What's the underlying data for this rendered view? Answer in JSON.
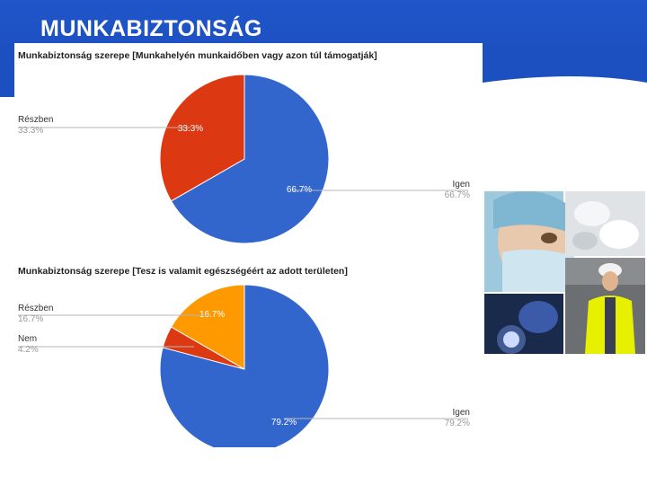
{
  "page": {
    "title": "MUNKABIZTONSÁG"
  },
  "chart_data": [
    {
      "type": "pie",
      "title": "Munkabiztonság szerepe [Munkahelyén munkaidőben vagy azon túl támogatják]",
      "slices": [
        {
          "label": "Igen",
          "value": 66.7,
          "display": "66.7%",
          "color": "#3366cc"
        },
        {
          "label": "Részben",
          "value": 33.3,
          "display": "33.3%",
          "color": "#dc3912"
        }
      ]
    },
    {
      "type": "pie",
      "title": "Munkabiztonság szerepe [Tesz is valamit egészségéért az adott területen]",
      "slices": [
        {
          "label": "Igen",
          "value": 79.2,
          "display": "79.2%",
          "color": "#3366cc"
        },
        {
          "label": "Nem",
          "value": 4.2,
          "display": "4.2%",
          "color": "#dc3912"
        },
        {
          "label": "Részben",
          "value": 16.7,
          "display": "16.7%",
          "color": "#ff9900"
        }
      ]
    }
  ]
}
